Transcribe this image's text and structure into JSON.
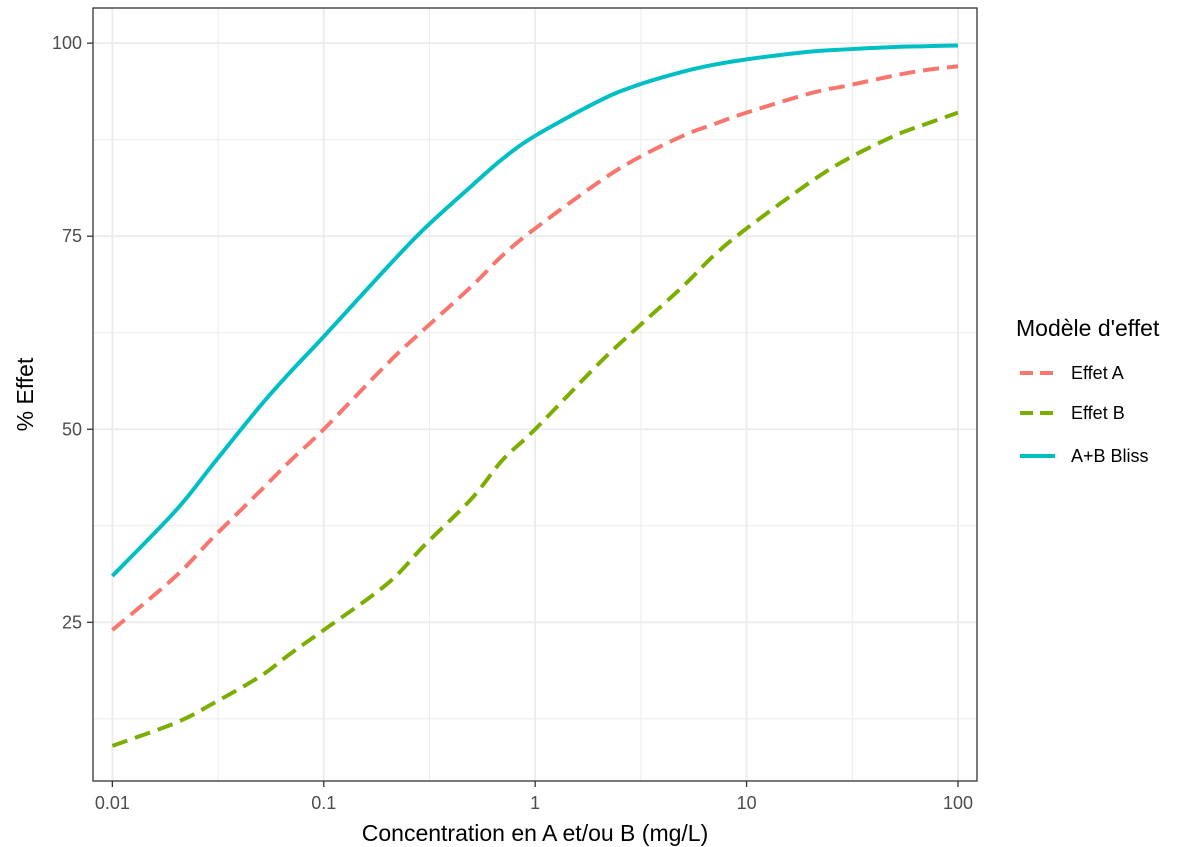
{
  "chart_data": {
    "type": "line",
    "xlabel": "Concentration en A et/ou B (mg/L)",
    "ylabel": "% Effet",
    "x_scale": "log10",
    "xlim": [
      0.01,
      100
    ],
    "ylim": [
      9,
      100
    ],
    "x_ticks": [
      0.01,
      0.1,
      1,
      10,
      100
    ],
    "x_tick_labels": [
      "0.01",
      "0.1",
      "1",
      "10",
      "100"
    ],
    "y_ticks": [
      25,
      50,
      75,
      100
    ],
    "y_tick_labels": [
      "25",
      "50",
      "75",
      "100"
    ],
    "grid": true,
    "legend": {
      "title": "Modèle d'effet",
      "position": "right"
    },
    "series": [
      {
        "name": "Effet A",
        "color": "#F8766D",
        "line_style": "dashed",
        "x": [
          0.01,
          0.02,
          0.03,
          0.05,
          0.07,
          0.1,
          0.2,
          0.3,
          0.5,
          0.7,
          1,
          2,
          3,
          5,
          7,
          10,
          20,
          30,
          50,
          70,
          100
        ],
        "y": [
          24,
          31,
          36,
          42,
          46,
          50,
          58.5,
          63,
          68.5,
          72.5,
          76,
          82,
          85,
          88,
          89.5,
          91,
          93.5,
          94.5,
          95.8,
          96.5,
          97
        ]
      },
      {
        "name": "Effet B",
        "color": "#7CAE00",
        "line_style": "dashed",
        "x": [
          0.01,
          0.02,
          0.03,
          0.05,
          0.07,
          0.1,
          0.2,
          0.3,
          0.5,
          0.7,
          1,
          2,
          3,
          5,
          7,
          10,
          20,
          30,
          50,
          70,
          100
        ],
        "y": [
          9,
          12,
          14.5,
          18,
          21,
          24,
          30,
          35,
          41,
          46,
          50,
          58.5,
          63,
          68.5,
          72.5,
          76,
          82,
          85,
          88,
          89.5,
          91
        ]
      },
      {
        "name": "A+B Bliss",
        "color": "#00BFC4",
        "line_style": "solid",
        "x": [
          0.01,
          0.02,
          0.03,
          0.05,
          0.07,
          0.1,
          0.2,
          0.3,
          0.5,
          0.7,
          1,
          2,
          3,
          5,
          7,
          10,
          20,
          30,
          50,
          70,
          100
        ],
        "y": [
          31,
          39.5,
          45.5,
          53,
          57.5,
          62,
          71,
          76,
          81.5,
          85,
          88,
          92.5,
          94.5,
          96.3,
          97.2,
          97.9,
          98.9,
          99.2,
          99.5,
          99.6,
          99.7
        ]
      }
    ]
  }
}
